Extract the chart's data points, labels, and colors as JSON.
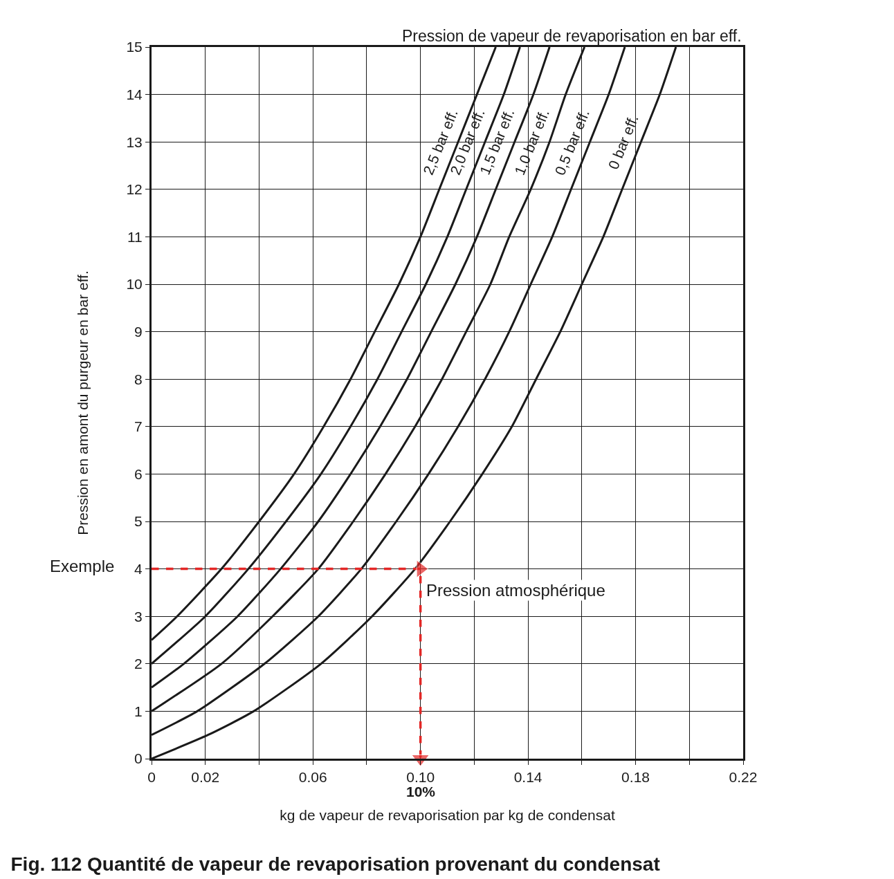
{
  "chart_data": {
    "type": "line",
    "title": "Fig. 112 Quantité de vapeur de revaporisation provenant du condensat",
    "xlabel": "kg de vapeur de revaporisation par kg de condensat",
    "ylabel": "Pression en amont du purgeur en bar eff.",
    "legend_title": "Pression de vapeur de revaporisation en bar eff.",
    "xlim": [
      0,
      0.22
    ],
    "ylim": [
      0,
      15
    ],
    "xticks": [
      0,
      {
        "value": 0.02,
        "label": "0.02"
      },
      {
        "value": 0.04,
        "label": null
      },
      {
        "value": 0.06,
        "label": "0.06"
      },
      {
        "value": 0.08,
        "label": null
      },
      {
        "value": 0.1,
        "label": "0.10"
      },
      {
        "value": 0.12,
        "label": null
      },
      {
        "value": 0.14,
        "label": "0.14"
      },
      {
        "value": 0.16,
        "label": null
      },
      {
        "value": 0.18,
        "label": "0.18"
      },
      {
        "value": 0.2,
        "label": null
      },
      {
        "value": 0.22,
        "label": "0.22"
      }
    ],
    "yticks": [
      0,
      1,
      2,
      3,
      4,
      5,
      6,
      7,
      8,
      9,
      10,
      11,
      12,
      13,
      14,
      15
    ],
    "grid": true,
    "legend": false,
    "marker": "none",
    "line_style": "solid",
    "series": [
      {
        "name": "2,5 bar eff.",
        "color": "#1a1a1a",
        "x": [
          0,
          0.0095,
          0.026,
          0.04,
          0.053,
          0.064,
          0.074,
          0.083,
          0.092,
          0.1,
          0.107,
          0.114,
          0.121,
          0.128
        ],
        "values": [
          2.5,
          3,
          4,
          5,
          6,
          7,
          8,
          9,
          10,
          11,
          12,
          13,
          14,
          15
        ]
      },
      {
        "name": "2,0 bar eff.",
        "color": "#1a1a1a",
        "x": [
          0,
          0.02,
          0.036,
          0.05,
          0.063,
          0.074,
          0.084,
          0.093,
          0.102,
          0.11,
          0.117,
          0.124,
          0.131,
          0.137
        ],
        "values": [
          2,
          3,
          4,
          5,
          6,
          7,
          8,
          9,
          10,
          11,
          12,
          13,
          14,
          15
        ]
      },
      {
        "name": "1,5 bar eff.",
        "color": "#1a1a1a",
        "x": [
          0,
          0.012,
          0.032,
          0.048,
          0.062,
          0.074,
          0.085,
          0.095,
          0.104,
          0.113,
          0.121,
          0.128,
          0.135,
          0.142,
          0.148
        ],
        "values": [
          1.5,
          2,
          3,
          4,
          5,
          6,
          7,
          8,
          9,
          10,
          11,
          12,
          13,
          14,
          15
        ]
      },
      {
        "name": "1,0 bar eff.",
        "color": "#1a1a1a",
        "x": [
          0,
          0.026,
          0.045,
          0.062,
          0.075,
          0.087,
          0.098,
          0.108,
          0.117,
          0.126,
          0.133,
          0.141,
          0.148,
          0.154,
          0.161
        ],
        "values": [
          1,
          2,
          3,
          4,
          5,
          6,
          7,
          8,
          9,
          10,
          11,
          12,
          13,
          14,
          15
        ]
      },
      {
        "name": "0,5 bar eff.",
        "color": "#1a1a1a",
        "x": [
          0,
          0.017,
          0.042,
          0.062,
          0.078,
          0.091,
          0.103,
          0.114,
          0.124,
          0.133,
          0.141,
          0.149,
          0.156,
          0.163,
          0.17,
          0.176
        ],
        "values": [
          0.5,
          1,
          2,
          3,
          4,
          5,
          6,
          7,
          8,
          9,
          10,
          11,
          12,
          13,
          14,
          15
        ]
      },
      {
        "name": "0 bar eff.",
        "color": "#1a1a1a",
        "x": [
          0,
          0.021,
          0.038,
          0.063,
          0.082,
          0.098,
          0.111,
          0.123,
          0.134,
          0.143,
          0.152,
          0.16,
          0.168,
          0.175,
          0.182,
          0.189,
          0.195
        ],
        "values": [
          0,
          0.5,
          1,
          2,
          3,
          4,
          5,
          6,
          7,
          8,
          9,
          10,
          11,
          12,
          13,
          14,
          15
        ]
      },
      {
        "color": "#e32726",
        "line_style": "dashed",
        "marker": "triangle",
        "x": [
          0,
          0.1,
          0.1
        ],
        "values": [
          4,
          4,
          0
        ]
      }
    ],
    "annotations": [
      "Exemple",
      {
        "text": "Pression atmosphérique",
        "x": 0.1,
        "y": 4
      },
      "10%"
    ]
  }
}
